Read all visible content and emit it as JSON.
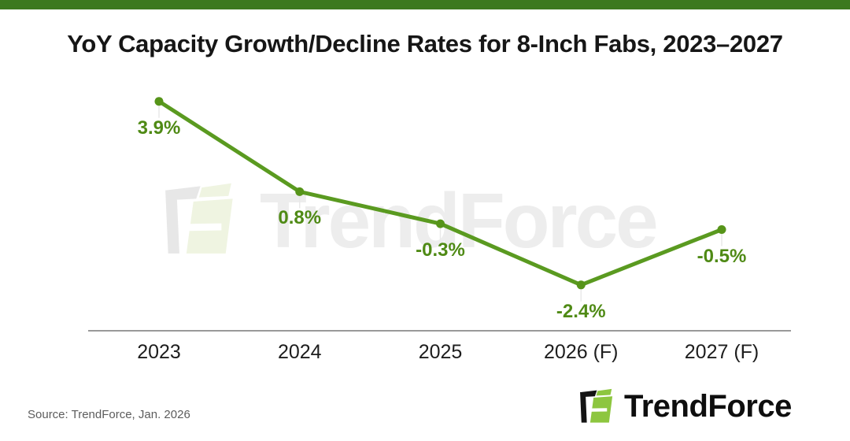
{
  "page": {
    "top_bar_color": "#3c791e",
    "background_color": "#ffffff"
  },
  "title": "YoY Capacity Growth/Decline Rates for 8-Inch Fabs, 2023–2027",
  "source_note": "Source: TrendForce, Jan. 2026",
  "watermark": {
    "icon": "trendforce-mark-icon",
    "text": "TrendForce"
  },
  "footer_logo": {
    "icon": "trendforce-mark-icon",
    "text": "TrendForce"
  },
  "chart_data": {
    "type": "line",
    "title": "YoY Capacity Growth/Decline Rates for 8-Inch Fabs, 2023–2027",
    "categories": [
      "2023",
      "2024",
      "2025",
      "2026 (F)",
      "2027 (F)"
    ],
    "values": [
      3.9,
      0.8,
      -0.3,
      -2.4,
      -0.5
    ],
    "point_labels": [
      "3.9%",
      "0.8%",
      "-0.3%",
      "-2.4%",
      "-0.5%"
    ],
    "unit": "%",
    "series_name": "YoY capacity growth/decline rate",
    "xlabel": "",
    "ylabel": "",
    "ylim": [
      -4,
      4.5
    ],
    "grid": false,
    "legend_position": "none",
    "line_color": "#5a9a20",
    "point_color": "#569419",
    "label_color": "#4f8a15",
    "axis_line_color": "#999999"
  }
}
